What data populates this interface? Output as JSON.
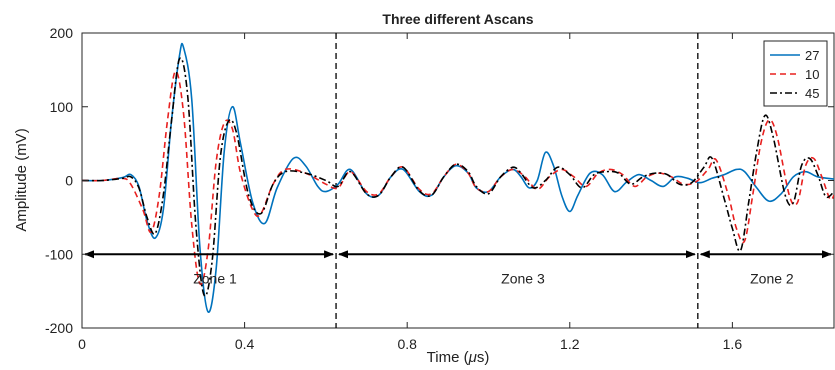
{
  "chart_data": {
    "type": "line",
    "title": "Three different Ascans",
    "xlabel_prefix": "Time (",
    "xlabel_symbol": "μ",
    "xlabel_suffix": "s)",
    "ylabel": "Amplitude (mV)",
    "xlim": [
      0,
      1.85
    ],
    "ylim": [
      -200,
      200
    ],
    "x_ticks": [
      0,
      0.4,
      0.8,
      1.2,
      1.6
    ],
    "x_tick_labels": [
      "0",
      "0.4",
      "0.8",
      "1.2",
      "1.6"
    ],
    "y_ticks": [
      -200,
      -100,
      0,
      100,
      200
    ],
    "y_tick_labels": [
      "-200",
      "-100",
      "0",
      "100",
      "200"
    ],
    "grid": false,
    "legend_position": "top-right",
    "series": [
      {
        "name": "27",
        "color": "#0072BD",
        "dash": "solid",
        "points": [
          [
            0,
            0
          ],
          [
            0.05,
            0
          ],
          [
            0.1,
            4
          ],
          [
            0.12,
            8
          ],
          [
            0.14,
            -8
          ],
          [
            0.16,
            -55
          ],
          [
            0.18,
            -78
          ],
          [
            0.2,
            -40
          ],
          [
            0.22,
            80
          ],
          [
            0.24,
            170
          ],
          [
            0.25,
            180
          ],
          [
            0.27,
            110
          ],
          [
            0.29,
            -90
          ],
          [
            0.31,
            -178
          ],
          [
            0.33,
            -120
          ],
          [
            0.35,
            40
          ],
          [
            0.37,
            100
          ],
          [
            0.39,
            50
          ],
          [
            0.42,
            -30
          ],
          [
            0.45,
            -58
          ],
          [
            0.48,
            -10
          ],
          [
            0.52,
            30
          ],
          [
            0.55,
            20
          ],
          [
            0.58,
            -8
          ],
          [
            0.6,
            -15
          ],
          [
            0.63,
            -5
          ],
          [
            0.66,
            15
          ],
          [
            0.7,
            -18
          ],
          [
            0.73,
            -20
          ],
          [
            0.76,
            5
          ],
          [
            0.79,
            15
          ],
          [
            0.83,
            -15
          ],
          [
            0.86,
            -20
          ],
          [
            0.89,
            5
          ],
          [
            0.92,
            20
          ],
          [
            0.95,
            10
          ],
          [
            0.97,
            -10
          ],
          [
            1.0,
            -15
          ],
          [
            1.03,
            5
          ],
          [
            1.06,
            15
          ],
          [
            1.08,
            5
          ],
          [
            1.1,
            -10
          ],
          [
            1.12,
            0
          ],
          [
            1.14,
            38
          ],
          [
            1.16,
            20
          ],
          [
            1.18,
            -20
          ],
          [
            1.2,
            -42
          ],
          [
            1.22,
            -20
          ],
          [
            1.25,
            10
          ],
          [
            1.28,
            8
          ],
          [
            1.31,
            -15
          ],
          [
            1.34,
            -2
          ],
          [
            1.37,
            8
          ],
          [
            1.4,
            0
          ],
          [
            1.43,
            -8
          ],
          [
            1.46,
            5
          ],
          [
            1.49,
            3
          ],
          [
            1.52,
            -3
          ],
          [
            1.55,
            3
          ],
          [
            1.58,
            8
          ],
          [
            1.61,
            15
          ],
          [
            1.63,
            12
          ],
          [
            1.66,
            -10
          ],
          [
            1.69,
            -28
          ],
          [
            1.72,
            -18
          ],
          [
            1.75,
            5
          ],
          [
            1.78,
            12
          ],
          [
            1.81,
            5
          ],
          [
            1.85,
            2
          ]
        ]
      },
      {
        "name": "10",
        "color": "#E8201F",
        "dash": "6,4",
        "points": [
          [
            0,
            0
          ],
          [
            0.05,
            0
          ],
          [
            0.1,
            3
          ],
          [
            0.12,
            -5
          ],
          [
            0.15,
            -40
          ],
          [
            0.17,
            -70
          ],
          [
            0.19,
            -20
          ],
          [
            0.21,
            80
          ],
          [
            0.23,
            148
          ],
          [
            0.25,
            90
          ],
          [
            0.27,
            -60
          ],
          [
            0.29,
            -140
          ],
          [
            0.31,
            -95
          ],
          [
            0.33,
            25
          ],
          [
            0.35,
            78
          ],
          [
            0.37,
            70
          ],
          [
            0.39,
            10
          ],
          [
            0.42,
            -40
          ],
          [
            0.44,
            -45
          ],
          [
            0.47,
            -5
          ],
          [
            0.5,
            15
          ],
          [
            0.55,
            10
          ],
          [
            0.6,
            -5
          ],
          [
            0.63,
            -10
          ],
          [
            0.66,
            12
          ],
          [
            0.7,
            -15
          ],
          [
            0.73,
            -18
          ],
          [
            0.76,
            5
          ],
          [
            0.79,
            18
          ],
          [
            0.83,
            -12
          ],
          [
            0.86,
            -18
          ],
          [
            0.89,
            5
          ],
          [
            0.92,
            22
          ],
          [
            0.95,
            10
          ],
          [
            0.97,
            -10
          ],
          [
            1.0,
            -15
          ],
          [
            1.03,
            5
          ],
          [
            1.06,
            15
          ],
          [
            1.09,
            5
          ],
          [
            1.12,
            -12
          ],
          [
            1.15,
            5
          ],
          [
            1.18,
            15
          ],
          [
            1.21,
            5
          ],
          [
            1.24,
            -8
          ],
          [
            1.27,
            10
          ],
          [
            1.3,
            15
          ],
          [
            1.33,
            8
          ],
          [
            1.36,
            -8
          ],
          [
            1.39,
            5
          ],
          [
            1.42,
            10
          ],
          [
            1.45,
            5
          ],
          [
            1.48,
            -5
          ],
          [
            1.51,
            -2
          ],
          [
            1.54,
            15
          ],
          [
            1.56,
            28
          ],
          [
            1.59,
            -20
          ],
          [
            1.61,
            -65
          ],
          [
            1.63,
            -82
          ],
          [
            1.65,
            -20
          ],
          [
            1.67,
            50
          ],
          [
            1.69,
            82
          ],
          [
            1.71,
            60
          ],
          [
            1.74,
            -20
          ],
          [
            1.76,
            -30
          ],
          [
            1.78,
            20
          ],
          [
            1.8,
            30
          ],
          [
            1.82,
            5
          ],
          [
            1.84,
            -25
          ],
          [
            1.85,
            -20
          ]
        ]
      },
      {
        "name": "45",
        "color": "#000000",
        "dash": "7,3,2,3",
        "points": [
          [
            0,
            0
          ],
          [
            0.05,
            0
          ],
          [
            0.1,
            3
          ],
          [
            0.12,
            5
          ],
          [
            0.14,
            -10
          ],
          [
            0.16,
            -50
          ],
          [
            0.18,
            -72
          ],
          [
            0.2,
            -20
          ],
          [
            0.22,
            80
          ],
          [
            0.24,
            165
          ],
          [
            0.26,
            115
          ],
          [
            0.28,
            -60
          ],
          [
            0.3,
            -155
          ],
          [
            0.32,
            -110
          ],
          [
            0.34,
            30
          ],
          [
            0.36,
            80
          ],
          [
            0.38,
            65
          ],
          [
            0.41,
            -20
          ],
          [
            0.44,
            -45
          ],
          [
            0.47,
            -5
          ],
          [
            0.5,
            12
          ],
          [
            0.55,
            10
          ],
          [
            0.6,
            0
          ],
          [
            0.63,
            -8
          ],
          [
            0.66,
            12
          ],
          [
            0.7,
            -18
          ],
          [
            0.73,
            -20
          ],
          [
            0.76,
            5
          ],
          [
            0.79,
            18
          ],
          [
            0.83,
            -14
          ],
          [
            0.86,
            -20
          ],
          [
            0.89,
            5
          ],
          [
            0.92,
            22
          ],
          [
            0.95,
            12
          ],
          [
            0.97,
            -8
          ],
          [
            1.0,
            -18
          ],
          [
            1.03,
            5
          ],
          [
            1.06,
            18
          ],
          [
            1.08,
            10
          ],
          [
            1.11,
            -10
          ],
          [
            1.14,
            0
          ],
          [
            1.17,
            18
          ],
          [
            1.2,
            8
          ],
          [
            1.23,
            -10
          ],
          [
            1.26,
            8
          ],
          [
            1.29,
            12
          ],
          [
            1.32,
            10
          ],
          [
            1.35,
            -5
          ],
          [
            1.38,
            5
          ],
          [
            1.41,
            10
          ],
          [
            1.44,
            8
          ],
          [
            1.47,
            -5
          ],
          [
            1.5,
            -3
          ],
          [
            1.53,
            18
          ],
          [
            1.55,
            30
          ],
          [
            1.58,
            -25
          ],
          [
            1.6,
            -65
          ],
          [
            1.62,
            -95
          ],
          [
            1.64,
            -30
          ],
          [
            1.66,
            40
          ],
          [
            1.68,
            88
          ],
          [
            1.7,
            60
          ],
          [
            1.73,
            -20
          ],
          [
            1.75,
            -30
          ],
          [
            1.77,
            20
          ],
          [
            1.79,
            30
          ],
          [
            1.81,
            8
          ],
          [
            1.83,
            -22
          ],
          [
            1.85,
            -15
          ]
        ]
      }
    ],
    "vlines": [
      0.625,
      1.515
    ],
    "zones": [
      {
        "label": "Zone 1",
        "from": 0.0,
        "to": 0.625,
        "y": -100
      },
      {
        "label": "Zone 3",
        "from": 0.625,
        "to": 1.515,
        "y": -100
      },
      {
        "label": "Zone 2",
        "from": 1.515,
        "to": 1.85,
        "y": -100
      }
    ]
  }
}
